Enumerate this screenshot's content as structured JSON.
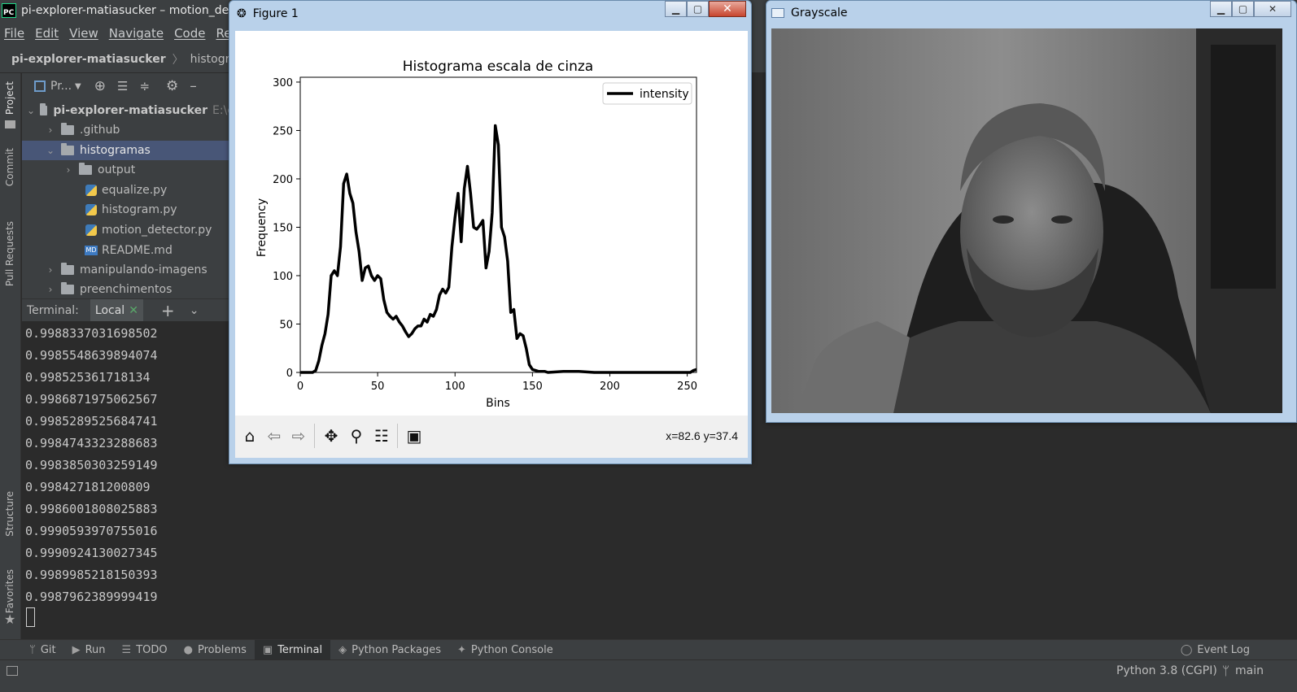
{
  "ide": {
    "title": "pi-explorer-matiasucker – motion_dete",
    "logo_text": "PC",
    "menu": [
      "File",
      "Edit",
      "View",
      "Navigate",
      "Code",
      "Refa"
    ],
    "breadcrumb": {
      "root": "pi-explorer-matiasucker",
      "child": "histograma"
    },
    "left_strip": [
      "Project",
      "Commit",
      "Pull Requests",
      "Structure",
      "Favorites"
    ],
    "project_toolbar": {
      "view_label": "Pr..."
    },
    "tree": [
      {
        "label": "pi-explorer-matiasucker",
        "extra": "E:\\c",
        "kind": "folder",
        "expanded": true,
        "level": 0
      },
      {
        "label": ".github",
        "kind": "folder",
        "expanded": false,
        "level": 1
      },
      {
        "label": "histogramas",
        "kind": "folder",
        "expanded": true,
        "level": 1,
        "selected": true
      },
      {
        "label": "output",
        "kind": "folder",
        "expanded": false,
        "level": 2
      },
      {
        "label": "equalize.py",
        "kind": "py",
        "level": 2
      },
      {
        "label": "histogram.py",
        "kind": "py",
        "level": 2
      },
      {
        "label": "motion_detector.py",
        "kind": "py",
        "level": 2
      },
      {
        "label": "README.md",
        "kind": "md",
        "level": 2
      },
      {
        "label": "manipulando-imagens",
        "kind": "folder",
        "expanded": false,
        "level": 1
      },
      {
        "label": "preenchimentos",
        "kind": "folder",
        "expanded": false,
        "level": 1
      }
    ],
    "terminal": {
      "label": "Terminal:",
      "tab": "Local",
      "lines": [
        "0.9988337031698502",
        "0.9985548639894074",
        "0.998525361718134",
        "0.9986871975062567",
        "0.9985289525684741",
        "0.9984743323288683",
        "0.9983850303259149",
        "0.998427181200809",
        "0.9986001808025883",
        "0.9990593970755016",
        "0.9990924130027345",
        "0.9989985218150393",
        "0.9987962389999419"
      ]
    },
    "bottom_tabs": [
      "Git",
      "Run",
      "TODO",
      "Problems",
      "Terminal",
      "Python Packages",
      "Python Console"
    ],
    "event_log": "Event Log",
    "status": {
      "interpreter": "Python 3.8 (CGPI)",
      "branch": "main"
    }
  },
  "figure": {
    "window_title": "Figure 1",
    "coords": "x=82.6 y=37.4",
    "toolbar": [
      "home-icon",
      "back-icon",
      "forward-icon",
      "pan-icon",
      "zoom-icon",
      "configure-subplots-icon",
      "save-icon"
    ]
  },
  "chart_data": {
    "type": "line",
    "title": "Histograma escala de cinza",
    "xlabel": "Bins",
    "ylabel": "Frequency",
    "xlim": [
      0,
      256
    ],
    "ylim": [
      0,
      305
    ],
    "xticks": [
      0,
      50,
      100,
      150,
      200,
      250
    ],
    "yticks": [
      0,
      50,
      100,
      150,
      200,
      250,
      300
    ],
    "legend": "top-right",
    "grid": false,
    "series": [
      {
        "name": "intensity",
        "color": "#000000",
        "x": [
          0,
          8,
          10,
          12,
          14,
          16,
          18,
          20,
          22,
          24,
          26,
          28,
          30,
          32,
          34,
          36,
          38,
          40,
          42,
          44,
          46,
          48,
          50,
          52,
          54,
          56,
          58,
          60,
          62,
          64,
          66,
          68,
          70,
          72,
          74,
          76,
          78,
          80,
          82,
          84,
          86,
          88,
          90,
          92,
          94,
          96,
          98,
          100,
          102,
          104,
          106,
          108,
          110,
          112,
          114,
          116,
          118,
          120,
          122,
          124,
          126,
          128,
          130,
          132,
          134,
          136,
          138,
          140,
          142,
          144,
          146,
          148,
          150,
          152,
          154,
          156,
          158,
          160,
          170,
          180,
          190,
          200,
          220,
          240,
          252,
          254,
          256
        ],
        "y": [
          0,
          0,
          2,
          12,
          28,
          40,
          60,
          100,
          105,
          100,
          130,
          195,
          205,
          185,
          175,
          145,
          125,
          95,
          108,
          110,
          100,
          95,
          100,
          97,
          75,
          62,
          58,
          55,
          58,
          52,
          48,
          42,
          37,
          40,
          45,
          48,
          48,
          55,
          52,
          60,
          58,
          65,
          80,
          86,
          82,
          88,
          130,
          160,
          185,
          135,
          190,
          213,
          185,
          150,
          148,
          152,
          157,
          108,
          125,
          165,
          255,
          235,
          150,
          140,
          115,
          62,
          65,
          35,
          40,
          38,
          25,
          8,
          3,
          2,
          1,
          1,
          1,
          0,
          1,
          1,
          0,
          0,
          0,
          0,
          0,
          2,
          3
        ]
      }
    ]
  },
  "grayscale": {
    "window_title": "Grayscale"
  },
  "colors": {
    "ide_bg": "#2b2b2b",
    "ide_panel": "#3c3f41",
    "selection": "#485677",
    "win_frame": "#b9d1ea",
    "close_red": "#c7452e"
  }
}
